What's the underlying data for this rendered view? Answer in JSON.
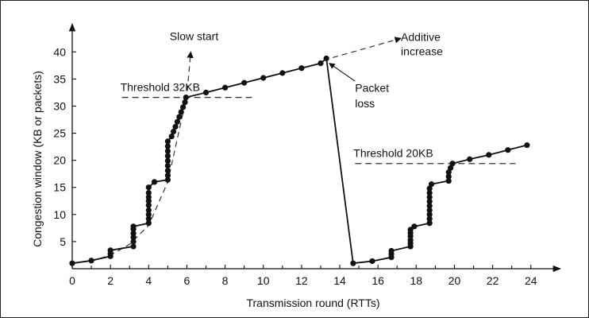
{
  "chart_data": {
    "type": "line",
    "xlabel": "Transmission round (RTTs)",
    "ylabel": "Congestion window (KB or packets)",
    "xlim": [
      0,
      24.8
    ],
    "ylim": [
      0,
      44
    ],
    "x_ticks": [
      0,
      2,
      4,
      6,
      8,
      10,
      12,
      14,
      16,
      18,
      20,
      22,
      24
    ],
    "y_ticks": [
      5,
      10,
      15,
      20,
      25,
      30,
      35,
      40
    ],
    "grid": false,
    "legend": "none",
    "series": [
      {
        "points": [
          [
            0,
            1
          ],
          [
            1,
            1.5
          ],
          [
            2,
            2.3
          ],
          [
            2,
            2.8
          ],
          [
            2,
            3.4
          ],
          [
            3.2,
            4.1
          ],
          [
            3.2,
            5.0
          ],
          [
            3.2,
            5.8
          ],
          [
            3.2,
            6.5
          ],
          [
            3.2,
            7.3
          ],
          [
            3.2,
            7.8
          ],
          [
            4,
            8.4
          ],
          [
            4,
            9.2
          ],
          [
            4,
            10.0
          ],
          [
            4,
            10.8
          ],
          [
            4,
            11.7
          ],
          [
            4,
            12.5
          ],
          [
            4,
            13.2
          ],
          [
            4,
            14.0
          ],
          [
            4,
            15.0
          ],
          [
            4.3,
            16.0
          ],
          [
            5,
            16.4
          ],
          [
            5,
            17.2
          ],
          [
            5,
            18.1
          ],
          [
            5,
            19.0
          ],
          [
            5,
            19.9
          ],
          [
            5,
            20.8
          ],
          [
            5,
            21.7
          ],
          [
            5,
            22.6
          ],
          [
            5,
            23.5
          ],
          [
            5.2,
            24.4
          ],
          [
            5.3,
            25.3
          ],
          [
            5.4,
            26.2
          ],
          [
            5.5,
            27.1
          ],
          [
            5.6,
            28.0
          ],
          [
            5.7,
            28.9
          ],
          [
            5.8,
            29.8
          ],
          [
            5.9,
            30.7
          ],
          [
            5.95,
            31.6
          ],
          [
            7,
            32.5
          ],
          [
            8,
            33.4
          ],
          [
            9,
            34.3
          ],
          [
            10,
            35.2
          ],
          [
            11,
            36.1
          ],
          [
            12,
            37.0
          ],
          [
            13,
            37.9
          ],
          [
            13.3,
            38.8
          ],
          [
            14.7,
            1.0
          ],
          [
            15.7,
            1.4
          ],
          [
            16.7,
            2.1
          ],
          [
            16.7,
            2.7
          ],
          [
            16.7,
            3.3
          ],
          [
            17.7,
            4.1
          ],
          [
            17.7,
            4.7
          ],
          [
            17.7,
            5.3
          ],
          [
            17.7,
            6.0
          ],
          [
            17.7,
            6.6
          ],
          [
            17.7,
            7.2
          ],
          [
            17.9,
            7.8
          ],
          [
            18.7,
            8.4
          ],
          [
            18.7,
            9.2
          ],
          [
            18.7,
            10.0
          ],
          [
            18.7,
            10.8
          ],
          [
            18.7,
            11.6
          ],
          [
            18.7,
            12.4
          ],
          [
            18.7,
            13.2
          ],
          [
            18.7,
            14.0
          ],
          [
            18.7,
            14.8
          ],
          [
            18.8,
            15.6
          ],
          [
            19.7,
            16.2
          ],
          [
            19.7,
            17.0
          ],
          [
            19.7,
            17.8
          ],
          [
            19.8,
            18.6
          ],
          [
            19.9,
            19.4
          ],
          [
            20.8,
            20.2
          ],
          [
            21.8,
            21.0
          ],
          [
            22.8,
            21.9
          ],
          [
            23.8,
            22.8
          ]
        ]
      }
    ],
    "slow_start_curve": [
      [
        0,
        1
      ],
      [
        1,
        1.4
      ],
      [
        2,
        2.5
      ],
      [
        3,
        4.5
      ],
      [
        4,
        8
      ],
      [
        5,
        16
      ],
      [
        6,
        32
      ],
      [
        6.2,
        40
      ]
    ],
    "thresholds": [
      {
        "label": "Threshold 32KB",
        "y": 31.6,
        "x_from": 2.6,
        "x_to": 9.4
      },
      {
        "label": "Threshold 20KB",
        "y": 19.4,
        "x_from": 14.8,
        "x_to": 23.2
      }
    ],
    "annotations": [
      {
        "text": "Slow start"
      },
      {
        "text": "Additive"
      },
      {
        "text": "increase"
      },
      {
        "text": "Packet"
      },
      {
        "text": "loss"
      }
    ]
  }
}
